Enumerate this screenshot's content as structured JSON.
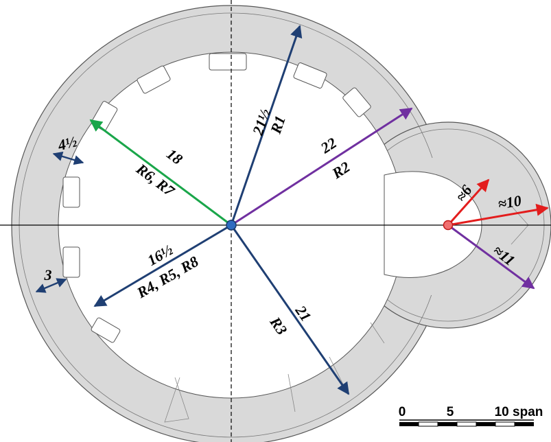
{
  "colors": {
    "wall": "#d9d9d9",
    "navy": "#1f3f73",
    "purple": "#7030a0",
    "green": "#1aa64a",
    "red": "#e31d1d",
    "center_fill": "#2e6bc0",
    "center2_fill": "#e04848"
  },
  "centers": {
    "main": {
      "label": "center-dot-blue"
    },
    "apse": {
      "label": "center-dot-red"
    }
  },
  "measurements": [
    {
      "id": "r1",
      "value": "21½",
      "tag": "R1",
      "color": "navy"
    },
    {
      "id": "r2",
      "value": "22",
      "tag": "R2",
      "color": "purple"
    },
    {
      "id": "r3",
      "value": "21",
      "tag": "R3",
      "color": "navy"
    },
    {
      "id": "r4",
      "value": "16½",
      "tag": "R4, R5, R8",
      "color": "navy"
    },
    {
      "id": "r6",
      "value": "18",
      "tag": "R6, R7",
      "color": "green"
    },
    {
      "id": "w1",
      "value": "4½",
      "color": "navy"
    },
    {
      "id": "w2",
      "value": "3",
      "color": "navy"
    },
    {
      "id": "a6",
      "value": "≈6",
      "color": "red"
    },
    {
      "id": "a10",
      "value": "≈10",
      "color": "red"
    },
    {
      "id": "a11",
      "value": "≈11",
      "color": "purple"
    }
  ],
  "scale_bar": {
    "ticks": [
      "0",
      "5",
      "10 span"
    ]
  }
}
